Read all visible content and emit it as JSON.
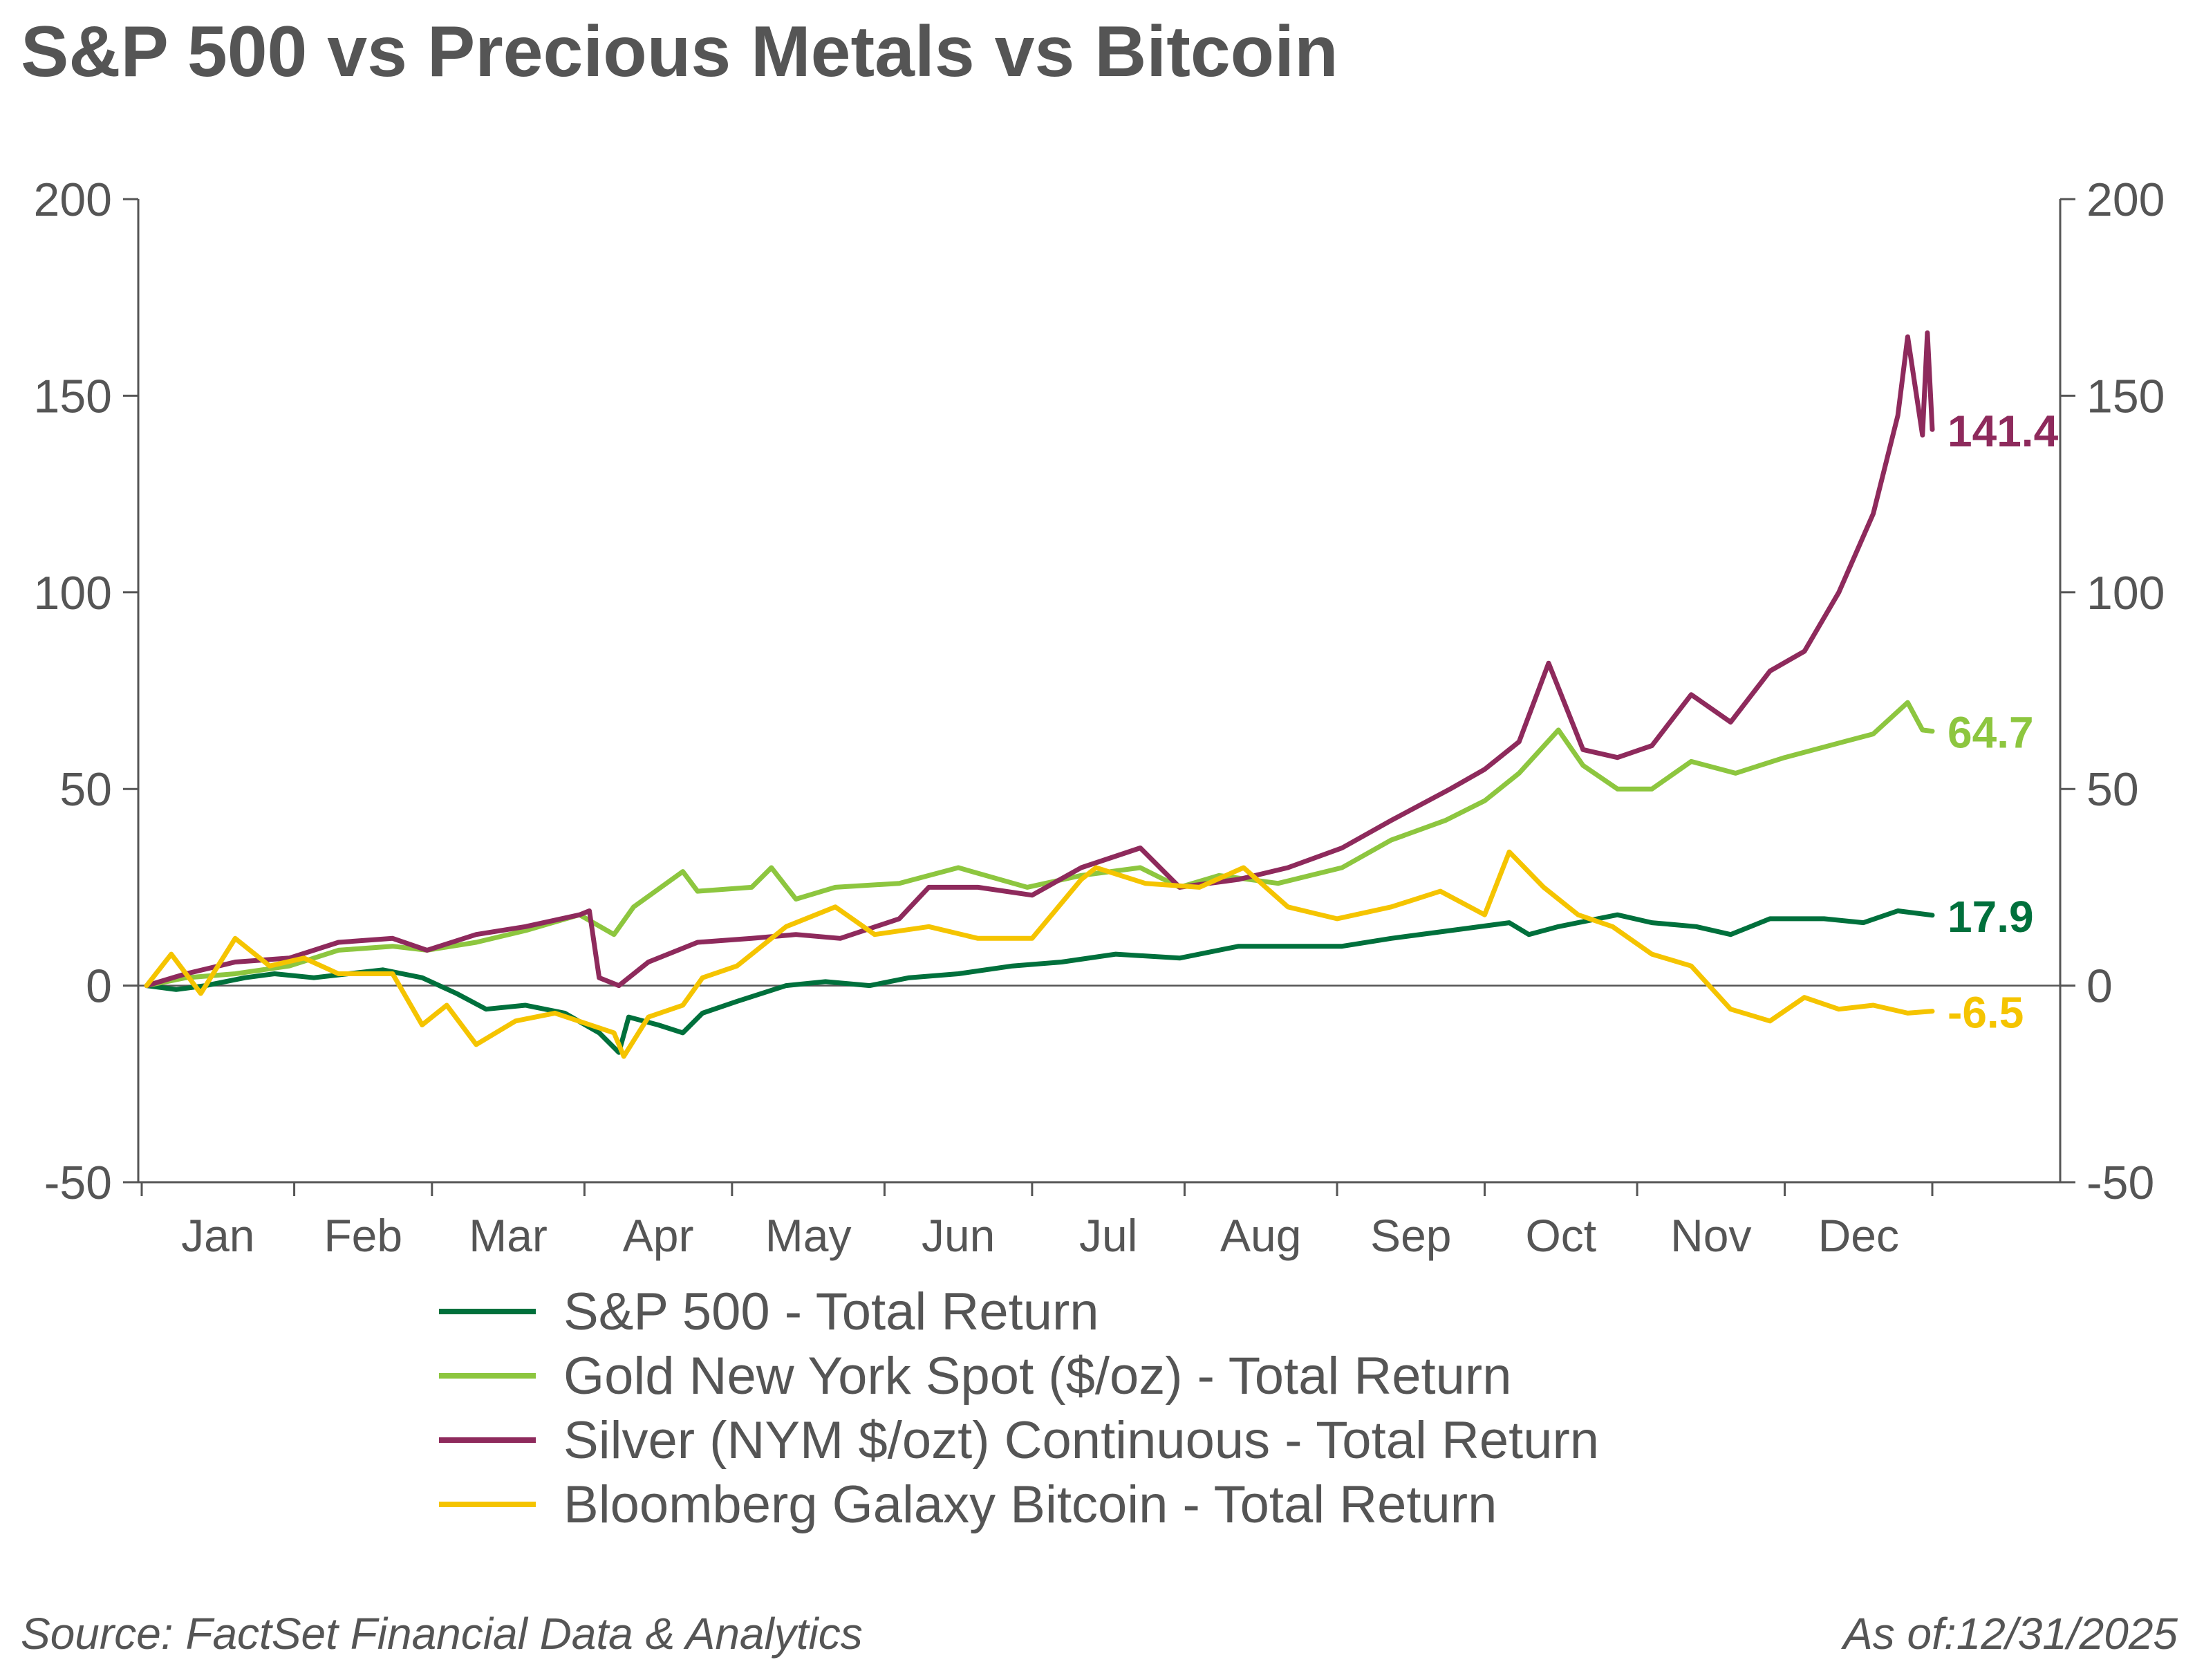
{
  "title": "S&P 500 vs Precious Metals vs Bitcoin",
  "source": "Source: FactSet Financial Data & Analytics",
  "as_of": "As of:12/31/2025",
  "colors": {
    "sp500": "#00703C",
    "gold": "#8DC63F",
    "silver": "#8E2A5C",
    "bitcoin": "#F5C400",
    "text": "#555555",
    "axis": "#555555"
  },
  "chart_data": {
    "type": "line",
    "x_axis": {
      "type": "date",
      "range": [
        "2025-01-01",
        "2025-12-31"
      ],
      "month_labels": [
        "Jan",
        "Feb",
        "Mar",
        "Apr",
        "May",
        "Jun",
        "Jul",
        "Aug",
        "Sep",
        "Oct",
        "Nov",
        "Dec"
      ]
    },
    "y_axis_left": {
      "range": [
        -50,
        200
      ],
      "ticks": [
        "200",
        "150",
        "100",
        "50",
        "0",
        "-50"
      ]
    },
    "y_axis_right": {
      "range": [
        -50,
        200
      ],
      "ticks": [
        "200",
        "150",
        "100",
        "50",
        "0",
        "-50"
      ]
    },
    "zero_line": true,
    "grid": false,
    "legend_position": "bottom",
    "series": [
      {
        "name": "S&P 500 - Total Return",
        "color_key": "sp500",
        "end_label": "17.9",
        "points": [
          [
            "2025-01-02",
            0
          ],
          [
            "2025-01-08",
            -1
          ],
          [
            "2025-01-14",
            0
          ],
          [
            "2025-01-22",
            2
          ],
          [
            "2025-01-28",
            3
          ],
          [
            "2025-02-05",
            2
          ],
          [
            "2025-02-12",
            3
          ],
          [
            "2025-02-19",
            4
          ],
          [
            "2025-02-27",
            2
          ],
          [
            "2025-03-06",
            -2
          ],
          [
            "2025-03-12",
            -6
          ],
          [
            "2025-03-20",
            -5
          ],
          [
            "2025-03-28",
            -7
          ],
          [
            "2025-04-04",
            -12
          ],
          [
            "2025-04-08",
            -17
          ],
          [
            "2025-04-10",
            -8
          ],
          [
            "2025-04-16",
            -10
          ],
          [
            "2025-04-21",
            -12
          ],
          [
            "2025-04-25",
            -7
          ],
          [
            "2025-05-02",
            -4
          ],
          [
            "2025-05-12",
            0
          ],
          [
            "2025-05-20",
            1
          ],
          [
            "2025-05-29",
            0
          ],
          [
            "2025-06-06",
            2
          ],
          [
            "2025-06-16",
            3
          ],
          [
            "2025-06-27",
            5
          ],
          [
            "2025-07-07",
            6
          ],
          [
            "2025-07-18",
            8
          ],
          [
            "2025-07-31",
            7
          ],
          [
            "2025-08-12",
            10
          ],
          [
            "2025-08-22",
            10
          ],
          [
            "2025-09-02",
            10
          ],
          [
            "2025-09-12",
            12
          ],
          [
            "2025-09-24",
            14
          ],
          [
            "2025-10-06",
            16
          ],
          [
            "2025-10-10",
            13
          ],
          [
            "2025-10-16",
            15
          ],
          [
            "2025-10-28",
            18
          ],
          [
            "2025-11-04",
            16
          ],
          [
            "2025-11-13",
            15
          ],
          [
            "2025-11-20",
            13
          ],
          [
            "2025-11-28",
            17
          ],
          [
            "2025-12-09",
            17
          ],
          [
            "2025-12-17",
            16
          ],
          [
            "2025-12-24",
            19
          ],
          [
            "2025-12-31",
            17.9
          ]
        ]
      },
      {
        "name": "Gold New York Spot ($/oz) - Total Return",
        "color_key": "gold",
        "end_label": "64.7",
        "points": [
          [
            "2025-01-02",
            0
          ],
          [
            "2025-01-10",
            2
          ],
          [
            "2025-01-20",
            3
          ],
          [
            "2025-01-31",
            5
          ],
          [
            "2025-02-10",
            9
          ],
          [
            "2025-02-21",
            10
          ],
          [
            "2025-02-28",
            9
          ],
          [
            "2025-03-10",
            11
          ],
          [
            "2025-03-20",
            14
          ],
          [
            "2025-03-31",
            18
          ],
          [
            "2025-04-07",
            13
          ],
          [
            "2025-04-11",
            20
          ],
          [
            "2025-04-21",
            29
          ],
          [
            "2025-04-24",
            24
          ],
          [
            "2025-05-05",
            25
          ],
          [
            "2025-05-09",
            30
          ],
          [
            "2025-05-14",
            22
          ],
          [
            "2025-05-22",
            25
          ],
          [
            "2025-06-04",
            26
          ],
          [
            "2025-06-16",
            30
          ],
          [
            "2025-06-30",
            25
          ],
          [
            "2025-07-11",
            28
          ],
          [
            "2025-07-23",
            30
          ],
          [
            "2025-07-31",
            25
          ],
          [
            "2025-08-08",
            28
          ],
          [
            "2025-08-20",
            26
          ],
          [
            "2025-09-02",
            30
          ],
          [
            "2025-09-12",
            37
          ],
          [
            "2025-09-23",
            42
          ],
          [
            "2025-10-01",
            47
          ],
          [
            "2025-10-08",
            54
          ],
          [
            "2025-10-16",
            65
          ],
          [
            "2025-10-21",
            56
          ],
          [
            "2025-10-28",
            50
          ],
          [
            "2025-11-04",
            50
          ],
          [
            "2025-11-12",
            57
          ],
          [
            "2025-11-21",
            54
          ],
          [
            "2025-12-01",
            58
          ],
          [
            "2025-12-10",
            61
          ],
          [
            "2025-12-19",
            64
          ],
          [
            "2025-12-26",
            72
          ],
          [
            "2025-12-29",
            65
          ],
          [
            "2025-12-31",
            64.7
          ]
        ]
      },
      {
        "name": "Silver (NYM $/ozt) Continuous - Total Return",
        "color_key": "silver",
        "end_label": "141.4",
        "points": [
          [
            "2025-01-02",
            0
          ],
          [
            "2025-01-10",
            3
          ],
          [
            "2025-01-20",
            6
          ],
          [
            "2025-01-31",
            7
          ],
          [
            "2025-02-10",
            11
          ],
          [
            "2025-02-21",
            12
          ],
          [
            "2025-02-28",
            9
          ],
          [
            "2025-03-10",
            13
          ],
          [
            "2025-03-20",
            15
          ],
          [
            "2025-03-31",
            18
          ],
          [
            "2025-04-02",
            19
          ],
          [
            "2025-04-04",
            2
          ],
          [
            "2025-04-08",
            0
          ],
          [
            "2025-04-14",
            6
          ],
          [
            "2025-04-24",
            11
          ],
          [
            "2025-05-05",
            12
          ],
          [
            "2025-05-14",
            13
          ],
          [
            "2025-05-23",
            12
          ],
          [
            "2025-06-04",
            17
          ],
          [
            "2025-06-10",
            25
          ],
          [
            "2025-06-20",
            25
          ],
          [
            "2025-07-01",
            23
          ],
          [
            "2025-07-11",
            30
          ],
          [
            "2025-07-23",
            35
          ],
          [
            "2025-07-31",
            25
          ],
          [
            "2025-08-12",
            27
          ],
          [
            "2025-08-22",
            30
          ],
          [
            "2025-09-02",
            35
          ],
          [
            "2025-09-12",
            42
          ],
          [
            "2025-09-24",
            50
          ],
          [
            "2025-10-01",
            55
          ],
          [
            "2025-10-08",
            62
          ],
          [
            "2025-10-14",
            82
          ],
          [
            "2025-10-21",
            60
          ],
          [
            "2025-10-28",
            58
          ],
          [
            "2025-11-04",
            61
          ],
          [
            "2025-11-12",
            74
          ],
          [
            "2025-11-20",
            67
          ],
          [
            "2025-11-28",
            80
          ],
          [
            "2025-12-05",
            85
          ],
          [
            "2025-12-12",
            100
          ],
          [
            "2025-12-19",
            120
          ],
          [
            "2025-12-24",
            145
          ],
          [
            "2025-12-26",
            165
          ],
          [
            "2025-12-29",
            140
          ],
          [
            "2025-12-30",
            166
          ],
          [
            "2025-12-31",
            141.4
          ]
        ]
      },
      {
        "name": "Bloomberg Galaxy Bitcoin - Total Return",
        "color_key": "bitcoin",
        "end_label": "-6.5",
        "points": [
          [
            "2025-01-02",
            0
          ],
          [
            "2025-01-07",
            8
          ],
          [
            "2025-01-13",
            -2
          ],
          [
            "2025-01-20",
            12
          ],
          [
            "2025-01-27",
            5
          ],
          [
            "2025-02-03",
            7
          ],
          [
            "2025-02-10",
            3
          ],
          [
            "2025-02-21",
            3
          ],
          [
            "2025-02-27",
            -10
          ],
          [
            "2025-03-04",
            -5
          ],
          [
            "2025-03-10",
            -15
          ],
          [
            "2025-03-18",
            -9
          ],
          [
            "2025-03-26",
            -7
          ],
          [
            "2025-04-07",
            -12
          ],
          [
            "2025-04-09",
            -18
          ],
          [
            "2025-04-14",
            -8
          ],
          [
            "2025-04-21",
            -5
          ],
          [
            "2025-04-25",
            2
          ],
          [
            "2025-05-02",
            5
          ],
          [
            "2025-05-12",
            15
          ],
          [
            "2025-05-22",
            20
          ],
          [
            "2025-05-30",
            13
          ],
          [
            "2025-06-10",
            15
          ],
          [
            "2025-06-20",
            12
          ],
          [
            "2025-07-01",
            12
          ],
          [
            "2025-07-11",
            27
          ],
          [
            "2025-07-14",
            30
          ],
          [
            "2025-07-24",
            26
          ],
          [
            "2025-08-04",
            25
          ],
          [
            "2025-08-13",
            30
          ],
          [
            "2025-08-22",
            20
          ],
          [
            "2025-09-01",
            17
          ],
          [
            "2025-09-12",
            20
          ],
          [
            "2025-09-22",
            24
          ],
          [
            "2025-10-01",
            18
          ],
          [
            "2025-10-06",
            34
          ],
          [
            "2025-10-13",
            25
          ],
          [
            "2025-10-20",
            18
          ],
          [
            "2025-10-27",
            15
          ],
          [
            "2025-11-04",
            8
          ],
          [
            "2025-11-12",
            5
          ],
          [
            "2025-11-20",
            -6
          ],
          [
            "2025-11-28",
            -9
          ],
          [
            "2025-12-05",
            -3
          ],
          [
            "2025-12-12",
            -6
          ],
          [
            "2025-12-19",
            -5
          ],
          [
            "2025-12-26",
            -7
          ],
          [
            "2025-12-31",
            -6.5
          ]
        ]
      }
    ]
  }
}
